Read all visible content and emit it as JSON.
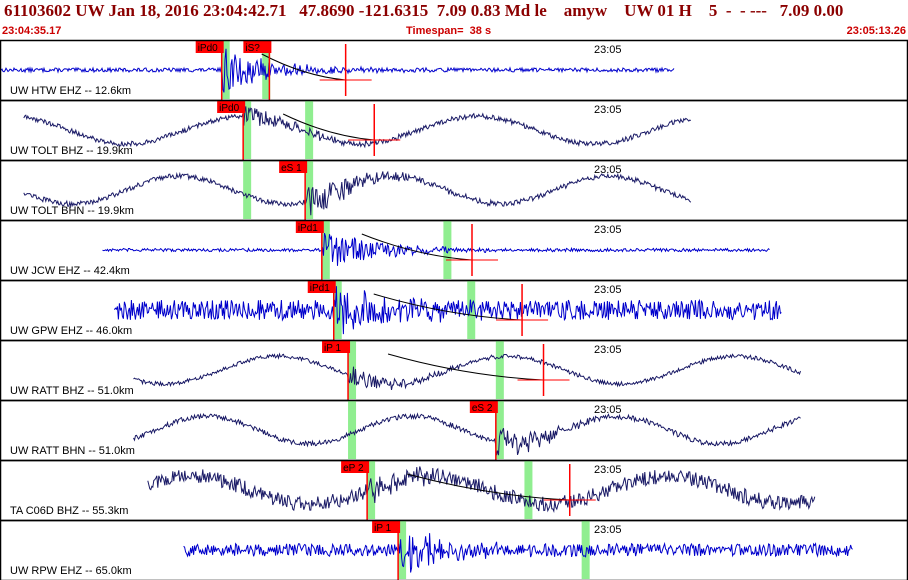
{
  "header": {
    "title": "61103602 UW Jan 18, 2016 23:04:42.71   47.8690 -121.6315  7.09 0.83 Md le    amyw    UW 01 H    5  -  - ---   7.09 0.00",
    "start_time": "23:04:35.17",
    "timespan_label": "Timespan=  38 s",
    "end_time": "23:05:13.26"
  },
  "colors": {
    "frame": "#000000",
    "trace_z": "#0000cc",
    "trace_h": "#1a1a66",
    "pick_box": "#ff0000",
    "pick_window": "#90ee90",
    "theory": "#000000",
    "header_text": "#8b0000"
  },
  "chart_data": {
    "type": "line",
    "title": "",
    "xlabel": "",
    "ylabel": "",
    "x_range": [
      "23:04:35.17",
      "23:05:13.26"
    ],
    "time_tick": "23:05",
    "grid": false,
    "panels": [
      {
        "label": "UW HTW EHZ -- 12.6km",
        "trace_color": "blue",
        "trace_start_s": 0.0,
        "trace_end_s": 28.3,
        "period_s": 0,
        "noise": 0.08,
        "onset_s": 9.3,
        "burst_amp": 0.9,
        "picks": [
          {
            "label": "iPd0",
            "t_s": 9.3
          },
          {
            "label": "iS?",
            "t_s": 11.3
          }
        ],
        "window_starts_s": [
          9.3,
          11.0
        ],
        "error_bar_s": 14.5
      },
      {
        "label": "UW TOLT BHZ -- 19.9km",
        "trace_color": "navy",
        "trace_start_s": 1.0,
        "trace_end_s": 29.0,
        "period_s": 9.8,
        "noise": 0.1,
        "onset_s": 10.2,
        "burst_amp": 0.5,
        "picks": [
          {
            "label": "iPd0",
            "t_s": 10.2
          }
        ],
        "window_starts_s": [
          10.2,
          12.8
        ],
        "error_bar_s": 15.7
      },
      {
        "label": "UW TOLT BHN -- 19.9km",
        "trace_color": "navy",
        "trace_start_s": 1.0,
        "trace_end_s": 29.0,
        "period_s": 9.0,
        "noise": 0.1,
        "onset_s": 12.8,
        "burst_amp": 0.9,
        "picks": [
          {
            "label": "eS 1",
            "t_s": 12.8
          }
        ],
        "window_starts_s": [
          10.2,
          12.8
        ]
      },
      {
        "label": "UW JCW EHZ -- 42.4km",
        "trace_color": "blue",
        "trace_start_s": 4.3,
        "trace_end_s": 32.3,
        "period_s": 0,
        "noise": 0.06,
        "onset_s": 13.5,
        "burst_amp": 0.9,
        "picks": [
          {
            "label": "iPd1",
            "t_s": 13.5
          }
        ],
        "window_starts_s": [
          13.5,
          18.6
        ],
        "error_bar_s": 19.8
      },
      {
        "label": "UW GPW EHZ -- 46.0km",
        "trace_color": "blue",
        "trace_start_s": 4.8,
        "trace_end_s": 32.8,
        "period_s": 0,
        "noise": 0.4,
        "onset_s": 14.0,
        "burst_amp": 0.9,
        "picks": [
          {
            "label": "iPd1",
            "t_s": 14.0
          }
        ],
        "window_starts_s": [
          14.0,
          19.6
        ],
        "error_bar_s": 21.9
      },
      {
        "label": "UW RATT BHZ -- 51.0km",
        "trace_color": "navy",
        "trace_start_s": 5.6,
        "trace_end_s": 33.6,
        "period_s": 9.6,
        "noise": 0.08,
        "onset_s": 14.6,
        "burst_amp": 0.4,
        "picks": [
          {
            "label": "iP 1",
            "t_s": 14.6
          }
        ],
        "window_starts_s": [
          14.6,
          20.8
        ],
        "error_bar_s": 22.8
      },
      {
        "label": "UW RATT BHN -- 51.0km",
        "trace_color": "navy",
        "trace_start_s": 5.6,
        "trace_end_s": 33.6,
        "period_s": 8.6,
        "noise": 0.1,
        "onset_s": 20.8,
        "burst_amp": 0.7,
        "picks": [
          {
            "label": "eS 2",
            "t_s": 20.8
          }
        ],
        "window_starts_s": [
          14.6,
          20.8
        ]
      },
      {
        "label": "TA C06D BHZ -- 55.3km",
        "trace_color": "navy",
        "trace_start_s": 6.2,
        "trace_end_s": 34.2,
        "period_s": 10.0,
        "noise": 0.3,
        "onset_s": 15.4,
        "burst_amp": 0.4,
        "picks": [
          {
            "label": "eP 2",
            "t_s": 15.4
          }
        ],
        "window_starts_s": [
          15.4,
          22.0
        ],
        "error_bar_s": 23.9
      },
      {
        "label": "UW RPW EHZ -- 65.0km",
        "trace_color": "blue",
        "trace_start_s": 7.7,
        "trace_end_s": 35.8,
        "period_s": 0,
        "noise": 0.25,
        "onset_s": 16.7,
        "burst_amp": 0.9,
        "picks": [
          {
            "label": "iP 1",
            "t_s": 16.7
          }
        ],
        "window_starts_s": [
          16.7,
          24.4
        ]
      }
    ]
  }
}
